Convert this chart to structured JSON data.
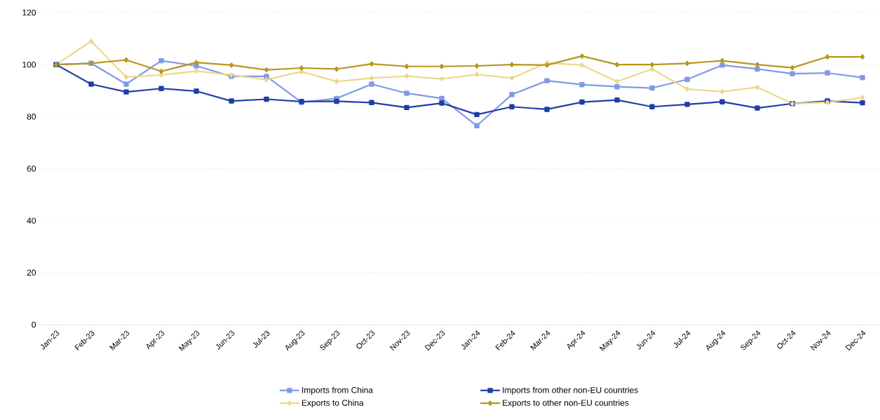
{
  "chart_data": {
    "type": "line",
    "categories": [
      "Jan-23",
      "Feb-23",
      "Mar-23",
      "Apr-23",
      "May-23",
      "Jun-23",
      "Jul-23",
      "Aug-23",
      "Sep-23",
      "Oct-23",
      "Nov-23",
      "Dec-23",
      "Jan-24",
      "Feb-24",
      "Mar-24",
      "Apr-24",
      "May-24",
      "Jun-24",
      "Jul-24",
      "Aug-24",
      "Sep-24",
      "Oct-24",
      "Nov-24",
      "Dec-24"
    ],
    "series": [
      {
        "name": "Imports from China",
        "color": "#7f9be6",
        "marker": "square",
        "values": [
          100,
          100.5,
          92.5,
          101.5,
          99.5,
          95.5,
          95.5,
          85.5,
          87,
          92.5,
          89,
          87,
          76.5,
          88.5,
          93.8,
          92.3,
          91.5,
          91,
          94.3,
          99.8,
          98.3,
          96.5,
          96.8,
          95
        ]
      },
      {
        "name": "Imports from other non-EU countries",
        "color": "#1f3ea6",
        "marker": "square",
        "values": [
          100,
          92.5,
          89.5,
          90.8,
          89.8,
          86,
          86.7,
          85.8,
          85.9,
          85.4,
          83.5,
          85.2,
          80.8,
          83.8,
          82.8,
          85.6,
          86.4,
          83.8,
          84.7,
          85.7,
          83.3,
          85,
          86,
          85.3
        ]
      },
      {
        "name": "Exports to China",
        "color": "#ecd88a",
        "marker": "diamond",
        "values": [
          100,
          109,
          95.2,
          96,
          97.5,
          96,
          94.2,
          97.3,
          93.5,
          94.8,
          95.6,
          94.5,
          96.2,
          94.8,
          100.7,
          99.8,
          93.5,
          98.3,
          90.6,
          89.6,
          91.3,
          85,
          85.5,
          87.3
        ]
      },
      {
        "name": "Exports to other non-EU countries",
        "color": "#b8961e",
        "marker": "diamond",
        "values": [
          100,
          100.5,
          101.8,
          97.4,
          100.8,
          99.8,
          98,
          98.7,
          98.3,
          100.3,
          99.3,
          99.3,
          99.5,
          100,
          99.8,
          103.3,
          100,
          100,
          100.5,
          101.5,
          100,
          98.8,
          103,
          103
        ]
      }
    ],
    "ylim": [
      0,
      120
    ],
    "yticks": [
      0,
      20,
      40,
      60,
      80,
      100,
      120
    ],
    "grid": "y",
    "legend": "bottom",
    "line_style": "solid"
  }
}
